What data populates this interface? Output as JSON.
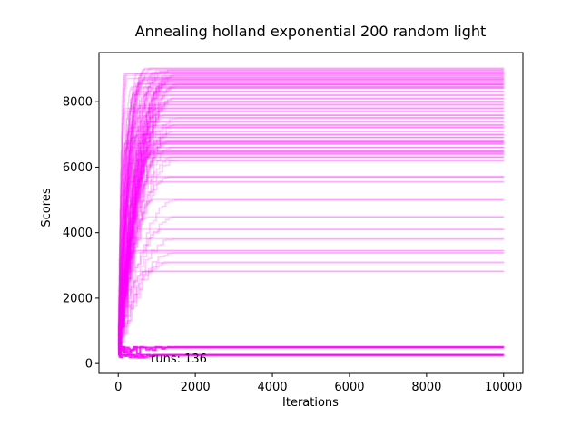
{
  "chart_data": {
    "type": "line",
    "title": "Annealing holland exponential 200 random light",
    "xlabel": "Iterations",
    "ylabel": "Scores",
    "xlim": [
      -500,
      10500
    ],
    "ylim": [
      -300,
      9500
    ],
    "x_ticks": [
      0,
      2000,
      4000,
      6000,
      8000,
      10000
    ],
    "y_ticks": [
      0,
      2000,
      4000,
      6000,
      8000
    ],
    "grid": false,
    "annotation": "runs: 136",
    "run_count": 136,
    "series_color": "#ff00ff",
    "x_max": 10000,
    "convergence_iteration_range": [
      150,
      1500
    ],
    "final_scores": [
      9000,
      8950,
      8900,
      8850,
      8800,
      8750,
      8700,
      8650,
      8600,
      8550,
      8500,
      8450,
      8400,
      8300,
      8200,
      8100,
      8000,
      7900,
      7800,
      7700,
      7600,
      7500,
      7400,
      7300,
      7200,
      7100,
      7000,
      6900,
      6800,
      6750,
      6700,
      6600,
      6500,
      6450,
      6400,
      6300,
      6200,
      5700,
      5550,
      5000,
      4500,
      4100,
      3800,
      3450,
      3400,
      3100,
      2800,
      500,
      250
    ]
  }
}
